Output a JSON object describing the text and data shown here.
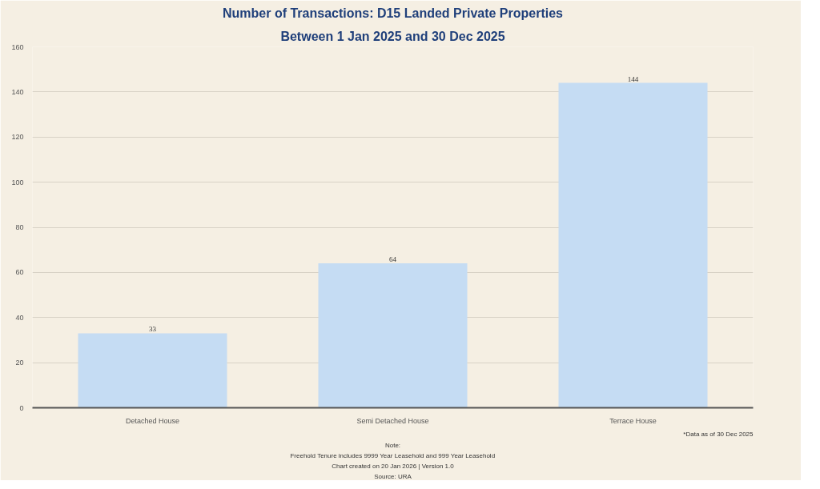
{
  "chart_data": {
    "type": "bar",
    "title": "Number of Transactions: D15 Landed Private Properties",
    "subtitle": "Between 1 Jan 2025 and 30 Dec 2025",
    "categories": [
      "Detached House",
      "Semi Detached House",
      "Terrace House"
    ],
    "values": [
      33,
      64,
      144
    ],
    "color": "#c5dcf3",
    "ylim": [
      0,
      160
    ],
    "yticks": [
      0,
      20,
      40,
      60,
      80,
      100,
      120,
      140,
      160
    ],
    "grid": "y",
    "data_labels": true,
    "annotations": [
      "*Data as of 30 Dec 2025",
      "Note:",
      "Freehold Tenure includes 9999 Year Leasehold and 999 Year Leasehold",
      "Chart created on 20 Jan 2026 | Version 1.0",
      "Source: URA"
    ]
  }
}
